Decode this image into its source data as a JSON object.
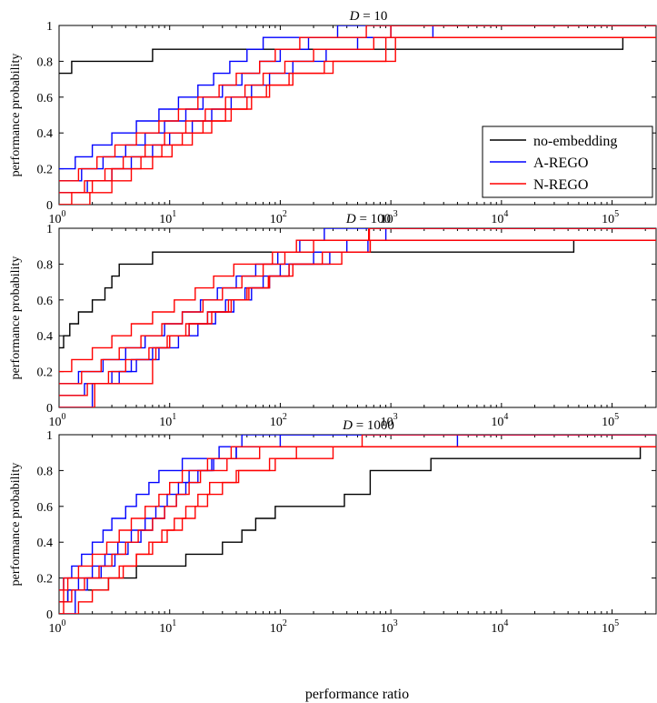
{
  "figure": {
    "xlabel": "performance ratio",
    "ylabel": "performance probability"
  },
  "chart_data": [
    {
      "type": "line",
      "title": "D = 10",
      "title_var": "D",
      "title_rest": " = 10",
      "xscale": "log",
      "xlim": [
        1,
        250000
      ],
      "ylim": [
        0,
        1
      ],
      "xticks": [
        1,
        10,
        100,
        1000,
        10000,
        100000
      ],
      "xtick_labels": [
        [
          "10",
          "0"
        ],
        [
          "10",
          "1"
        ],
        [
          "10",
          "2"
        ],
        [
          "10",
          "3"
        ],
        [
          "10",
          "4"
        ],
        [
          "10",
          "5"
        ]
      ],
      "yticks": [
        0,
        0.2,
        0.4,
        0.6,
        0.8,
        1
      ],
      "ytick_labels": [
        "0",
        "0.2",
        "0.4",
        "0.6",
        "0.8",
        "1"
      ],
      "legend": {
        "location": "right",
        "entries": [
          {
            "label": "no-embedding",
            "color": "#000000"
          },
          {
            "label": "A-REGO",
            "color": "#0000ff"
          },
          {
            "label": "N-REGO",
            "color": "#ff0000"
          }
        ]
      },
      "series": [
        {
          "group": "no-embedding",
          "color": "#000000",
          "x": [
            1,
            1.3,
            7,
            60,
            2000,
            125000,
            250000
          ],
          "y": [
            0.733,
            0.8,
            0.867,
            0.867,
            0.867,
            0.933,
            0.933
          ]
        },
        {
          "group": "A-REGO",
          "color": "#0000ff",
          "x": [
            1,
            1.4,
            2,
            3,
            5,
            8,
            12,
            18,
            25,
            35,
            50,
            70,
            120,
            200,
            330,
            600,
            250000
          ],
          "y": [
            0.2,
            0.267,
            0.333,
            0.4,
            0.467,
            0.533,
            0.6,
            0.667,
            0.733,
            0.8,
            0.867,
            0.933,
            0.933,
            0.933,
            1,
            1,
            1
          ]
        },
        {
          "group": "A-REGO",
          "color": "#0000ff",
          "x": [
            1,
            1.6,
            2.5,
            4,
            6,
            9,
            14,
            20,
            30,
            45,
            65,
            100,
            180,
            360,
            1000,
            250000
          ],
          "y": [
            0.133,
            0.2,
            0.267,
            0.333,
            0.4,
            0.467,
            0.533,
            0.6,
            0.667,
            0.733,
            0.8,
            0.867,
            0.933,
            0.933,
            1,
            1
          ]
        },
        {
          "group": "A-REGO",
          "color": "#0000ff",
          "x": [
            1,
            1.8,
            3,
            4.5,
            7,
            10,
            16,
            24,
            36,
            55,
            80,
            130,
            260,
            500,
            2400,
            250000
          ],
          "y": [
            0.067,
            0.133,
            0.2,
            0.267,
            0.333,
            0.4,
            0.467,
            0.533,
            0.6,
            0.667,
            0.733,
            0.8,
            0.867,
            0.933,
            1,
            1
          ]
        },
        {
          "group": "N-REGO",
          "color": "#ff0000",
          "x": [
            1,
            1.5,
            2.2,
            3.2,
            5,
            8,
            12,
            18,
            28,
            40,
            65,
            90,
            150,
            400,
            600,
            250000
          ],
          "y": [
            0.133,
            0.2,
            0.267,
            0.333,
            0.4,
            0.467,
            0.533,
            0.6,
            0.667,
            0.733,
            0.8,
            0.867,
            0.933,
            0.933,
            1,
            1
          ]
        },
        {
          "group": "N-REGO",
          "color": "#ff0000",
          "x": [
            1,
            1.7,
            2.6,
            3.8,
            6,
            9,
            14,
            21,
            32,
            48,
            70,
            110,
            200,
            700,
            1000,
            250000
          ],
          "y": [
            0.067,
            0.133,
            0.2,
            0.267,
            0.333,
            0.4,
            0.467,
            0.533,
            0.6,
            0.667,
            0.733,
            0.8,
            0.867,
            0.933,
            1,
            1
          ]
        },
        {
          "group": "N-REGO",
          "color": "#ff0000",
          "x": [
            1,
            1.9,
            3,
            4.5,
            7,
            10.5,
            16,
            24,
            36,
            55,
            80,
            130,
            250,
            900,
            250000
          ],
          "y": [
            0.0,
            0.067,
            0.133,
            0.2,
            0.267,
            0.333,
            0.4,
            0.467,
            0.533,
            0.6,
            0.667,
            0.733,
            0.8,
            0.933,
            0.933
          ]
        },
        {
          "group": "N-REGO",
          "color": "#ff0000",
          "x": [
            1,
            1.3,
            2,
            3,
            5.5,
            8.5,
            13,
            20,
            32,
            50,
            75,
            120,
            300,
            1100,
            250000
          ],
          "y": [
            0.0,
            0.067,
            0.133,
            0.2,
            0.267,
            0.333,
            0.4,
            0.467,
            0.533,
            0.6,
            0.667,
            0.733,
            0.8,
            0.933,
            0.933
          ]
        }
      ]
    },
    {
      "type": "line",
      "title": "D = 100",
      "title_var": "D",
      "title_rest": " = 100",
      "xscale": "log",
      "xlim": [
        1,
        250000
      ],
      "ylim": [
        0,
        1
      ],
      "xticks": [
        1,
        10,
        100,
        1000,
        10000,
        100000
      ],
      "xtick_labels": [
        [
          "10",
          "0"
        ],
        [
          "10",
          "1"
        ],
        [
          "10",
          "2"
        ],
        [
          "10",
          "3"
        ],
        [
          "10",
          "4"
        ],
        [
          "10",
          "5"
        ]
      ],
      "yticks": [
        0,
        0.2,
        0.4,
        0.6,
        0.8,
        1
      ],
      "ytick_labels": [
        "0",
        "0.2",
        "0.4",
        "0.6",
        "0.8",
        "1"
      ],
      "series": [
        {
          "group": "no-embedding",
          "color": "#000000",
          "x": [
            1,
            1.1,
            1.25,
            1.5,
            2,
            2.6,
            3,
            3.5,
            4.5,
            7,
            650,
            45000,
            250000
          ],
          "y": [
            0.333,
            0.4,
            0.467,
            0.533,
            0.6,
            0.667,
            0.733,
            0.8,
            0.8,
            0.867,
            0.867,
            0.933,
            0.933
          ]
        },
        {
          "group": "A-REGO",
          "color": "#0000ff",
          "x": [
            1,
            1.5,
            2.5,
            4,
            6,
            9,
            13,
            19,
            27,
            40,
            60,
            95,
            150,
            250,
            600,
            250000
          ],
          "y": [
            0.133,
            0.2,
            0.267,
            0.333,
            0.4,
            0.467,
            0.533,
            0.6,
            0.667,
            0.733,
            0.8,
            0.867,
            0.933,
            1,
            1,
            1
          ]
        },
        {
          "group": "A-REGO",
          "color": "#0000ff",
          "x": [
            1,
            1.7,
            3,
            4.5,
            7,
            10,
            15,
            22,
            32,
            48,
            70,
            100,
            200,
            400,
            900,
            250000
          ],
          "y": [
            0.067,
            0.133,
            0.2,
            0.267,
            0.333,
            0.4,
            0.467,
            0.533,
            0.6,
            0.667,
            0.733,
            0.8,
            0.867,
            0.933,
            1,
            1
          ]
        },
        {
          "group": "A-REGO",
          "color": "#0000ff",
          "x": [
            1,
            2,
            3.5,
            5,
            8,
            12,
            18,
            26,
            38,
            55,
            80,
            120,
            280,
            620,
            250000
          ],
          "y": [
            0.0,
            0.133,
            0.2,
            0.267,
            0.333,
            0.4,
            0.467,
            0.533,
            0.6,
            0.667,
            0.733,
            0.8,
            0.867,
            0.933,
            0.933
          ]
        },
        {
          "group": "N-REGO",
          "color": "#ff0000",
          "x": [
            1,
            1.3,
            2,
            3,
            4.5,
            7,
            11,
            17,
            25,
            38,
            55,
            85,
            140,
            350,
            630,
            250000
          ],
          "y": [
            0.2,
            0.267,
            0.333,
            0.4,
            0.467,
            0.533,
            0.6,
            0.667,
            0.733,
            0.8,
            0.8,
            0.867,
            0.933,
            0.933,
            1,
            1
          ]
        },
        {
          "group": "N-REGO",
          "color": "#ff0000",
          "x": [
            1,
            1.6,
            2.4,
            3.5,
            5.5,
            8.5,
            13,
            20,
            30,
            45,
            70,
            110,
            200,
            640,
            250000
          ],
          "y": [
            0.133,
            0.2,
            0.267,
            0.333,
            0.4,
            0.467,
            0.533,
            0.6,
            0.667,
            0.733,
            0.8,
            0.867,
            0.933,
            1,
            1
          ]
        },
        {
          "group": "N-REGO",
          "color": "#ff0000",
          "x": [
            1,
            1.8,
            2.8,
            4,
            6.5,
            9.5,
            14,
            22,
            34,
            52,
            78,
            130,
            360,
            650,
            250000
          ],
          "y": [
            0.067,
            0.133,
            0.2,
            0.267,
            0.333,
            0.4,
            0.467,
            0.533,
            0.6,
            0.667,
            0.733,
            0.8,
            0.867,
            0.933,
            0.933
          ]
        },
        {
          "group": "N-REGO",
          "color": "#ff0000",
          "x": [
            1,
            2.1,
            7,
            7.5,
            10,
            15,
            24,
            36,
            50,
            80,
            120,
            240,
            650,
            250000
          ],
          "y": [
            0.0,
            0.133,
            0.267,
            0.333,
            0.4,
            0.467,
            0.533,
            0.6,
            0.667,
            0.733,
            0.8,
            0.867,
            0.933,
            0.933
          ]
        }
      ]
    },
    {
      "type": "line",
      "title": "D = 1000",
      "title_var": "D",
      "title_rest": " = 1000",
      "xscale": "log",
      "xlim": [
        1,
        250000
      ],
      "ylim": [
        0,
        1
      ],
      "xticks": [
        1,
        10,
        100,
        1000,
        10000,
        100000
      ],
      "xtick_labels": [
        [
          "10",
          "0"
        ],
        [
          "10",
          "1"
        ],
        [
          "10",
          "2"
        ],
        [
          "10",
          "3"
        ],
        [
          "10",
          "4"
        ],
        [
          "10",
          "5"
        ]
      ],
      "yticks": [
        0,
        0.2,
        0.4,
        0.6,
        0.8,
        1
      ],
      "ytick_labels": [
        "0",
        "0.2",
        "0.4",
        "0.6",
        "0.8",
        "1"
      ],
      "series": [
        {
          "group": "no-embedding",
          "color": "#000000",
          "x": [
            1,
            1.2,
            1.5,
            2.8,
            5,
            8,
            14,
            22,
            30,
            45,
            60,
            90,
            150,
            250,
            380,
            650,
            2300,
            180000,
            250000
          ],
          "y": [
            0.067,
            0.133,
            0.133,
            0.2,
            0.267,
            0.267,
            0.333,
            0.333,
            0.4,
            0.467,
            0.533,
            0.6,
            0.6,
            0.6,
            0.667,
            0.8,
            0.867,
            0.933,
            0.933
          ]
        },
        {
          "group": "A-REGO",
          "color": "#0000ff",
          "x": [
            1,
            1.1,
            1.3,
            1.6,
            2,
            2.5,
            3,
            4,
            5,
            6.5,
            8,
            10,
            13,
            17,
            22,
            28,
            35,
            45,
            55,
            250000
          ],
          "y": [
            0.133,
            0.2,
            0.267,
            0.333,
            0.4,
            0.467,
            0.533,
            0.6,
            0.667,
            0.733,
            0.8,
            0.8,
            0.867,
            0.867,
            0.867,
            0.933,
            0.933,
            1,
            1,
            1
          ]
        },
        {
          "group": "A-REGO",
          "color": "#0000ff",
          "x": [
            1,
            1.2,
            1.5,
            2,
            2.6,
            3.4,
            4.5,
            6,
            7.5,
            9.5,
            12,
            15,
            19,
            25,
            32,
            40,
            60,
            100,
            250000
          ],
          "y": [
            0.067,
            0.133,
            0.2,
            0.267,
            0.333,
            0.4,
            0.467,
            0.533,
            0.6,
            0.667,
            0.733,
            0.8,
            0.8,
            0.867,
            0.867,
            0.933,
            0.933,
            1,
            1
          ]
        },
        {
          "group": "A-REGO",
          "color": "#0000ff",
          "x": [
            1,
            1.4,
            1.8,
            2.4,
            3.2,
            4.2,
            5.5,
            7,
            9,
            11.5,
            14,
            18,
            24,
            30,
            40,
            70,
            3300,
            4000,
            250000
          ],
          "y": [
            0.0,
            0.133,
            0.2,
            0.267,
            0.333,
            0.4,
            0.467,
            0.533,
            0.6,
            0.667,
            0.733,
            0.8,
            0.867,
            0.867,
            0.933,
            0.933,
            0.933,
            1,
            1
          ]
        },
        {
          "group": "N-REGO",
          "color": "#ff0000",
          "x": [
            1,
            1.2,
            1.5,
            2,
            2.7,
            3.5,
            4.5,
            6,
            8,
            10,
            13,
            17,
            22,
            28,
            36,
            50,
            100,
            550,
            250000
          ],
          "y": [
            0.133,
            0.2,
            0.267,
            0.333,
            0.4,
            0.467,
            0.533,
            0.6,
            0.667,
            0.733,
            0.8,
            0.8,
            0.867,
            0.867,
            0.933,
            0.933,
            0.933,
            1,
            1
          ]
        },
        {
          "group": "N-REGO",
          "color": "#ff0000",
          "x": [
            1,
            1.3,
            1.7,
            2.3,
            3,
            4,
            5.2,
            7,
            9,
            11.5,
            15,
            19,
            25,
            33,
            45,
            65,
            120,
            250000
          ],
          "y": [
            0.067,
            0.133,
            0.2,
            0.267,
            0.333,
            0.4,
            0.467,
            0.533,
            0.6,
            0.667,
            0.733,
            0.8,
            0.8,
            0.867,
            0.867,
            0.933,
            0.933,
            0.933
          ]
        },
        {
          "group": "N-REGO",
          "color": "#ff0000",
          "x": [
            1,
            1.5,
            2,
            2.8,
            3.8,
            5,
            6.5,
            8.5,
            11,
            14,
            18,
            23,
            30,
            40,
            55,
            80,
            140,
            250000
          ],
          "y": [
            0.0,
            0.067,
            0.133,
            0.2,
            0.267,
            0.333,
            0.4,
            0.467,
            0.533,
            0.6,
            0.667,
            0.733,
            0.733,
            0.8,
            0.8,
            0.867,
            0.933,
            0.933
          ]
        },
        {
          "group": "N-REGO",
          "color": "#ff0000",
          "x": [
            1,
            1.1,
            2.5,
            3.5,
            5,
            7,
            9.5,
            13,
            17,
            22,
            30,
            42,
            60,
            90,
            130,
            300,
            250000
          ],
          "y": [
            0.0,
            0.2,
            0.2,
            0.267,
            0.333,
            0.4,
            0.467,
            0.533,
            0.6,
            0.667,
            0.733,
            0.8,
            0.8,
            0.867,
            0.867,
            0.933,
            0.933
          ]
        }
      ]
    }
  ]
}
